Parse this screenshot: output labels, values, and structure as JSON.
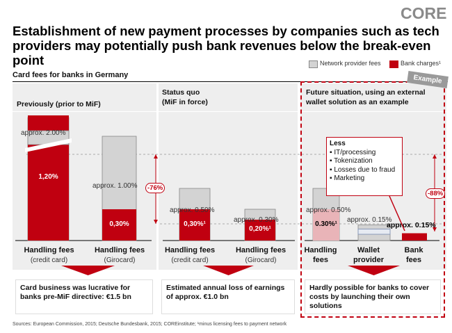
{
  "brand": {
    "logo": "CORE"
  },
  "title": "Establishment of new payment processes by companies such as tech providers may potentially push bank revenues below the break-even point",
  "subtitle": "Card fees for banks in Germany",
  "legend": {
    "network": "Network provider  fees",
    "bank": "Bank charges¹"
  },
  "colors": {
    "bank": "#c00010",
    "network": "#d3d3d3",
    "panel": "#eeeeee",
    "accent": "#c00010"
  },
  "panels": [
    {
      "header": "Previously (prior to MiF)",
      "summary": "Card business was lucrative for banks pre-MiF directive: €1.5 bn"
    },
    {
      "header_line1": "Status quo",
      "header_line2": "(MiF in force)",
      "summary": "Estimated annual loss of earnings of approx. €1.0 bn"
    },
    {
      "header": "Future situation, using an external wallet solution as an example",
      "summary": "Hardly possible for banks to cover costs by launching their own solutions",
      "badge": "Example"
    }
  ],
  "chart_data": {
    "type": "bar",
    "title": "Card fees for banks in Germany",
    "unit": "%",
    "categories": [
      {
        "name": "Handling fees",
        "sub": "(credit card)"
      },
      {
        "name": "Handling fees",
        "sub": "(Girocard)"
      },
      {
        "name": "Handling fees",
        "sub": "(credit card)"
      },
      {
        "name": "Handling fees",
        "sub": "(Girocard)"
      },
      {
        "name": "Handling",
        "sub": "fees"
      },
      {
        "name": "Wallet",
        "sub": "provider"
      },
      {
        "name": "Bank",
        "sub": "fees"
      }
    ],
    "totals": [
      2.0,
      1.0,
      0.5,
      0.3,
      0.5,
      0.15,
      0.15
    ],
    "bank_charges": [
      1.2,
      0.3,
      0.3,
      0.2,
      0.3,
      null,
      0.15
    ],
    "total_labels": [
      "approx. 2.00%",
      "approx. 1.00%",
      "approx. 0.50%",
      "approx. 0.30%",
      "approx. 0.50%",
      "approx. 0.15%",
      "approx. 0.15%"
    ],
    "bank_labels": [
      "1,20%",
      "0,30%",
      "0,30%¹",
      "0,20%¹",
      "0.30%¹",
      "",
      ""
    ],
    "changes": [
      "-76%",
      "-88%"
    ]
  },
  "callout": {
    "title": "Less",
    "items": [
      "IT/processing",
      "Tokenization",
      "Losses due to fraud",
      "Marketing"
    ]
  },
  "sources": "Sources: European Commission, 2015; Deutsche Bundesbank, 2015; COREinstitute; ¹minus licensing fees to payment network"
}
